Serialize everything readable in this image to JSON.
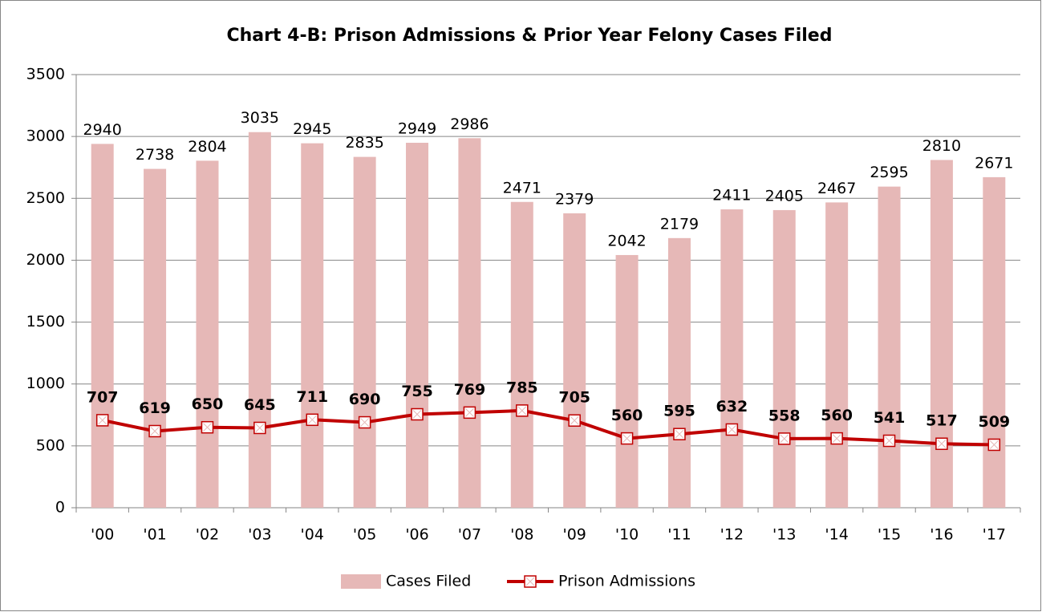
{
  "chart_data": {
    "type": "bar",
    "title": "Chart 4-B: Prison Admissions & Prior Year Felony Cases Filed",
    "categories": [
      "'00",
      "'01",
      "'02",
      "'03",
      "'04",
      "'05",
      "'06",
      "'07",
      "'08",
      "'09",
      "'10",
      "'11",
      "'12",
      "'13",
      "'14",
      "'15",
      "'16",
      "'17"
    ],
    "series": [
      {
        "name": "Cases Filed",
        "type": "bar",
        "color": "#e6b8b7",
        "values": [
          2940,
          2738,
          2804,
          3035,
          2945,
          2835,
          2949,
          2986,
          2471,
          2379,
          2042,
          2179,
          2411,
          2405,
          2467,
          2595,
          2810,
          2671
        ]
      },
      {
        "name": "Prison Admissions",
        "type": "line",
        "color": "#c00000",
        "values": [
          707,
          619,
          650,
          645,
          711,
          690,
          755,
          769,
          785,
          705,
          560,
          595,
          632,
          558,
          560,
          541,
          517,
          509
        ]
      }
    ],
    "ylim": [
      0,
      3500
    ],
    "yticks": [
      0,
      500,
      1000,
      1500,
      2000,
      2500,
      3000,
      3500
    ],
    "grid": true,
    "legend": "bottom"
  }
}
